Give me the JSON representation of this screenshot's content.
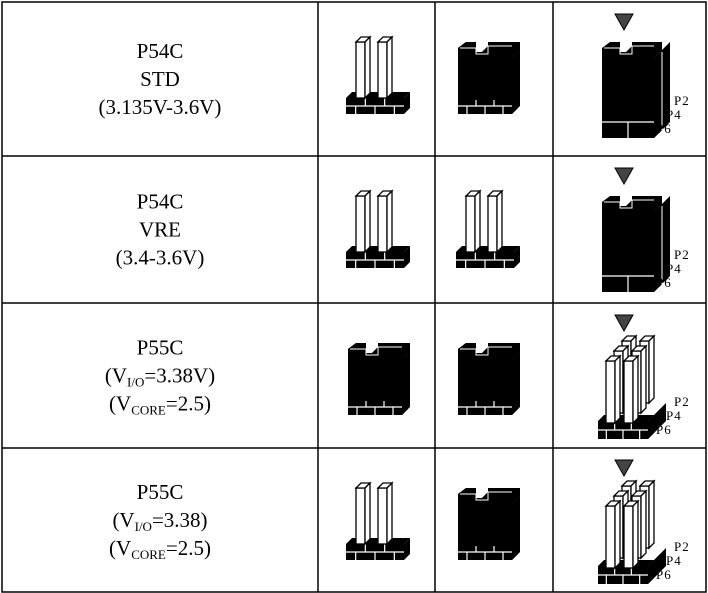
{
  "table": {
    "rows": [
      {
        "lines": [
          {
            "text": "P54C"
          },
          {
            "text": "STD"
          },
          {
            "text": "(3.135V-3.6V)"
          }
        ],
        "pins": [
          "P2",
          "P4",
          "P6"
        ]
      },
      {
        "lines": [
          {
            "text": "P54C"
          },
          {
            "text": "VRE"
          },
          {
            "text": "(3.4-3.6V)"
          }
        ],
        "pins": [
          "P2",
          "P4",
          "P6"
        ]
      },
      {
        "lines": [
          {
            "text": "P55C"
          },
          {
            "pre": "(V",
            "sub": "I/O",
            "post": "=3.38V)"
          },
          {
            "pre": "(V",
            "sub": "CORE",
            "post": "=2.5)"
          }
        ],
        "pins": [
          "P2",
          "P4",
          "P6"
        ]
      },
      {
        "lines": [
          {
            "text": "P55C"
          },
          {
            "pre": "(V",
            "sub": "I/O",
            "post": "=3.38)"
          },
          {
            "pre": "(V",
            "sub": "CORE",
            "post": "=2.5)"
          }
        ],
        "pins": [
          "P2",
          "P4",
          "P6"
        ]
      }
    ]
  }
}
